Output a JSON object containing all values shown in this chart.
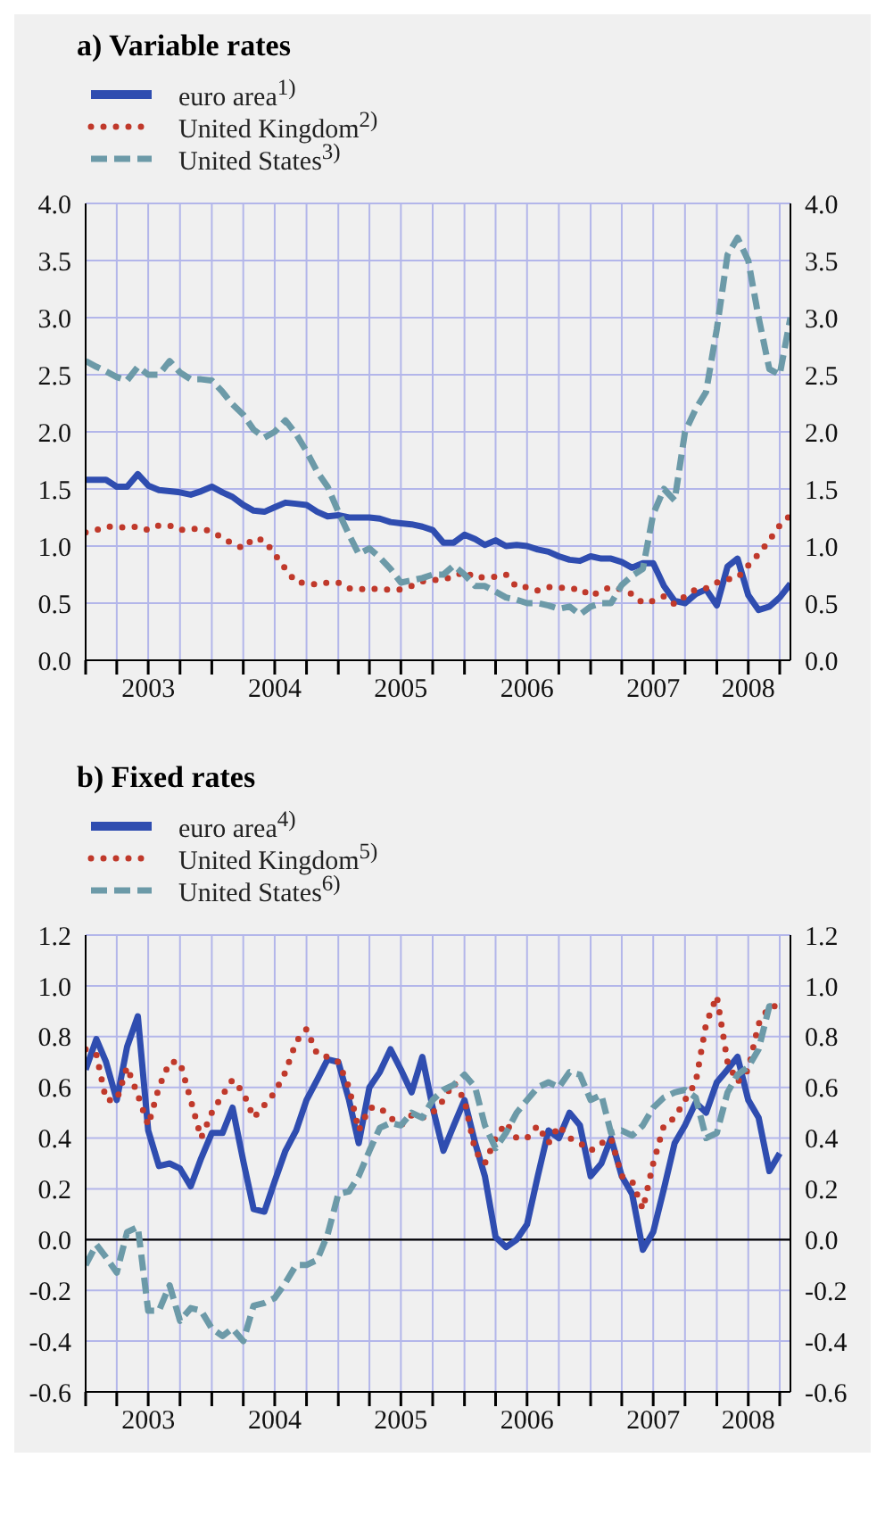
{
  "chart_data": [
    {
      "type": "line",
      "title": "a) Variable rates",
      "legend": "top left",
      "grid": true,
      "x": [
        "2003-01",
        "2003-02",
        "2003-03",
        "2003-04",
        "2003-05",
        "2003-06",
        "2003-07",
        "2003-08",
        "2003-09",
        "2003-10",
        "2003-11",
        "2003-12",
        "2004-01",
        "2004-02",
        "2004-03",
        "2004-04",
        "2004-05",
        "2004-06",
        "2004-07",
        "2004-08",
        "2004-09",
        "2004-10",
        "2004-11",
        "2004-12",
        "2005-01",
        "2005-02",
        "2005-03",
        "2005-04",
        "2005-05",
        "2005-06",
        "2005-07",
        "2005-08",
        "2005-09",
        "2005-10",
        "2005-11",
        "2005-12",
        "2006-01",
        "2006-02",
        "2006-03",
        "2006-04",
        "2006-05",
        "2006-06",
        "2006-07",
        "2006-08",
        "2006-09",
        "2006-10",
        "2006-11",
        "2006-12",
        "2007-01",
        "2007-02",
        "2007-03",
        "2007-04",
        "2007-05",
        "2007-06",
        "2007-07",
        "2007-08",
        "2007-09",
        "2007-10",
        "2007-11",
        "2007-12",
        "2008-01",
        "2008-02",
        "2008-03",
        "2008-04",
        "2008-05",
        "2008-06",
        "2008-07",
        "2008-08"
      ],
      "xlim": [
        "2003-01",
        "2008-08"
      ],
      "xticks": [
        {
          "value": "2003-01",
          "label": null
        },
        {
          "value": "2003-04",
          "label": null
        },
        {
          "value": "2003-07",
          "label": "2003"
        },
        {
          "value": "2003-10",
          "label": null
        },
        {
          "value": "2004-01",
          "label": null
        },
        {
          "value": "2004-04",
          "label": null
        },
        {
          "value": "2004-07",
          "label": "2004"
        },
        {
          "value": "2004-10",
          "label": null
        },
        {
          "value": "2005-01",
          "label": null
        },
        {
          "value": "2005-04",
          "label": null
        },
        {
          "value": "2005-07",
          "label": "2005"
        },
        {
          "value": "2005-10",
          "label": null
        },
        {
          "value": "2006-01",
          "label": null
        },
        {
          "value": "2006-04",
          "label": null
        },
        {
          "value": "2006-07",
          "label": "2006"
        },
        {
          "value": "2006-10",
          "label": null
        },
        {
          "value": "2007-01",
          "label": null
        },
        {
          "value": "2007-04",
          "label": null
        },
        {
          "value": "2007-07",
          "label": "2007"
        },
        {
          "value": "2007-10",
          "label": null
        },
        {
          "value": "2008-01",
          "label": null
        },
        {
          "value": "2008-04",
          "label": "2008"
        },
        {
          "value": "2008-07",
          "label": null
        }
      ],
      "ylim": [
        0,
        4
      ],
      "yticks": [
        {
          "value": 0,
          "label": "0.0"
        },
        {
          "value": 0.5,
          "label": "0.5"
        },
        {
          "value": 1,
          "label": "1.0"
        },
        {
          "value": 1.5,
          "label": "1.5"
        },
        {
          "value": 2,
          "label": "2.0"
        },
        {
          "value": 2.5,
          "label": "2.5"
        },
        {
          "value": 3,
          "label": "3.0"
        },
        {
          "value": 3.5,
          "label": "3.5"
        },
        {
          "value": 4,
          "label": "4.0"
        }
      ],
      "y2lim": [
        0,
        4
      ],
      "y2ticks": [
        {
          "value": 0,
          "label": "0.0"
        },
        {
          "value": 0.5,
          "label": "0.5"
        },
        {
          "value": 1,
          "label": "1.0"
        },
        {
          "value": 1.5,
          "label": "1.5"
        },
        {
          "value": 2,
          "label": "2.0"
        },
        {
          "value": 2.5,
          "label": "2.5"
        },
        {
          "value": 3,
          "label": "3.0"
        },
        {
          "value": 3.5,
          "label": "3.5"
        },
        {
          "value": 4,
          "label": "4.0"
        }
      ],
      "series": [
        {
          "name": "euro area$^{1)}$",
          "color": "#2f4db0",
          "line_style": "solid",
          "values": [
            1.58,
            1.58,
            1.58,
            1.52,
            1.52,
            1.63,
            1.53,
            1.49,
            1.48,
            1.47,
            1.45,
            1.48,
            1.52,
            1.47,
            1.43,
            1.36,
            1.31,
            1.3,
            1.34,
            1.38,
            1.37,
            1.36,
            1.3,
            1.26,
            1.27,
            1.25,
            1.25,
            1.25,
            1.24,
            1.21,
            1.2,
            1.19,
            1.17,
            1.14,
            1.03,
            1.03,
            1.1,
            1.06,
            1.01,
            1.05,
            1.0,
            1.01,
            1.0,
            0.97,
            0.95,
            0.91,
            0.88,
            0.87,
            0.91,
            0.89,
            0.89,
            0.86,
            0.81,
            0.85,
            0.85,
            0.65,
            0.52,
            0.5,
            0.58,
            0.62,
            0.48,
            0.82,
            0.89,
            0.57,
            0.44,
            0.47,
            0.55,
            0.67
          ]
        },
        {
          "name": "United Kingdom$^{2)}$",
          "color": "#c0392b",
          "line_style": "dotted",
          "values": [
            1.12,
            1.14,
            1.17,
            1.17,
            1.16,
            1.17,
            1.14,
            1.18,
            1.18,
            1.14,
            1.15,
            1.15,
            1.13,
            1.07,
            1.02,
            0.98,
            1.07,
            1.05,
            0.93,
            0.8,
            0.68,
            0.68,
            0.66,
            0.68,
            0.68,
            0.63,
            0.62,
            0.63,
            0.62,
            0.62,
            0.62,
            0.65,
            0.69,
            0.7,
            0.71,
            0.73,
            0.78,
            0.72,
            0.73,
            0.73,
            0.75,
            0.64,
            0.64,
            0.61,
            0.64,
            0.64,
            0.62,
            0.63,
            0.56,
            0.61,
            0.64,
            0.62,
            0.58,
            0.5,
            0.52,
            0.56,
            0.49,
            0.56,
            0.62,
            0.63,
            0.68,
            0.71,
            0.72,
            0.83,
            0.93,
            1.05,
            1.18,
            1.27
          ]
        },
        {
          "name": "United States$^{3)}$",
          "color": "#6c9aa8",
          "line_style": "dashed",
          "values": [
            2.62,
            2.57,
            2.53,
            2.48,
            2.45,
            2.57,
            2.5,
            2.5,
            2.62,
            2.52,
            2.46,
            2.46,
            2.45,
            2.35,
            2.24,
            2.15,
            2.02,
            1.95,
            2.0,
            2.1,
            1.98,
            1.83,
            1.65,
            1.52,
            1.3,
            1.1,
            0.93,
            0.98,
            0.9,
            0.8,
            0.68,
            0.7,
            0.72,
            0.75,
            0.75,
            0.83,
            0.75,
            0.65,
            0.65,
            0.6,
            0.55,
            0.53,
            0.5,
            0.5,
            0.48,
            0.45,
            0.47,
            0.4,
            0.47,
            0.5,
            0.5,
            0.66,
            0.74,
            0.8,
            1.28,
            1.5,
            1.4,
            2.0,
            2.2,
            2.35,
            2.9,
            3.55,
            3.7,
            3.5,
            3.0,
            2.55,
            2.5,
            3.0
          ]
        }
      ]
    },
    {
      "type": "line",
      "title": "b) Fixed rates",
      "legend": "top left",
      "grid": true,
      "x": [
        "2003-01",
        "2003-02",
        "2003-03",
        "2003-04",
        "2003-05",
        "2003-06",
        "2003-07",
        "2003-08",
        "2003-09",
        "2003-10",
        "2003-11",
        "2003-12",
        "2004-01",
        "2004-02",
        "2004-03",
        "2004-04",
        "2004-05",
        "2004-06",
        "2004-07",
        "2004-08",
        "2004-09",
        "2004-10",
        "2004-11",
        "2004-12",
        "2005-01",
        "2005-02",
        "2005-03",
        "2005-04",
        "2005-05",
        "2005-06",
        "2005-07",
        "2005-08",
        "2005-09",
        "2005-10",
        "2005-11",
        "2005-12",
        "2006-01",
        "2006-02",
        "2006-03",
        "2006-04",
        "2006-05",
        "2006-06",
        "2006-07",
        "2006-08",
        "2006-09",
        "2006-10",
        "2006-11",
        "2006-12",
        "2007-01",
        "2007-02",
        "2007-03",
        "2007-04",
        "2007-05",
        "2007-06",
        "2007-07",
        "2007-08",
        "2007-09",
        "2007-10",
        "2007-11",
        "2007-12",
        "2008-01",
        "2008-02",
        "2008-03",
        "2008-04",
        "2008-05",
        "2008-06",
        "2008-07"
      ],
      "xlim": [
        "2003-01",
        "2008-08"
      ],
      "xticks": [
        {
          "value": "2003-01",
          "label": null
        },
        {
          "value": "2003-04",
          "label": null
        },
        {
          "value": "2003-07",
          "label": "2003"
        },
        {
          "value": "2003-10",
          "label": null
        },
        {
          "value": "2004-01",
          "label": null
        },
        {
          "value": "2004-04",
          "label": null
        },
        {
          "value": "2004-07",
          "label": "2004"
        },
        {
          "value": "2004-10",
          "label": null
        },
        {
          "value": "2005-01",
          "label": null
        },
        {
          "value": "2005-04",
          "label": null
        },
        {
          "value": "2005-07",
          "label": "2005"
        },
        {
          "value": "2005-10",
          "label": null
        },
        {
          "value": "2006-01",
          "label": null
        },
        {
          "value": "2006-04",
          "label": null
        },
        {
          "value": "2006-07",
          "label": "2006"
        },
        {
          "value": "2006-10",
          "label": null
        },
        {
          "value": "2007-01",
          "label": null
        },
        {
          "value": "2007-04",
          "label": null
        },
        {
          "value": "2007-07",
          "label": "2007"
        },
        {
          "value": "2007-10",
          "label": null
        },
        {
          "value": "2008-01",
          "label": null
        },
        {
          "value": "2008-04",
          "label": "2008"
        },
        {
          "value": "2008-07",
          "label": null
        }
      ],
      "ylim": [
        -0.6,
        1.2
      ],
      "yticks": [
        {
          "value": -0.6,
          "label": "-0.6"
        },
        {
          "value": -0.4,
          "label": "-0.4"
        },
        {
          "value": -0.2,
          "label": "-0.2"
        },
        {
          "value": 0,
          "label": "0.0"
        },
        {
          "value": 0.2,
          "label": "0.2"
        },
        {
          "value": 0.4,
          "label": "0.4"
        },
        {
          "value": 0.6,
          "label": "0.6"
        },
        {
          "value": 0.8,
          "label": "0.8"
        },
        {
          "value": 1,
          "label": "1.0"
        },
        {
          "value": 1.2,
          "label": "1.2"
        }
      ],
      "y2lim": [
        -0.6,
        1.2
      ],
      "y2ticks": [
        {
          "value": -0.6,
          "label": "-0.6"
        },
        {
          "value": -0.4,
          "label": "-0.4"
        },
        {
          "value": -0.2,
          "label": "-0.2"
        },
        {
          "value": 0,
          "label": "0.0"
        },
        {
          "value": 0.2,
          "label": "0.2"
        },
        {
          "value": 0.4,
          "label": "0.4"
        },
        {
          "value": 0.6,
          "label": "0.6"
        },
        {
          "value": 0.8,
          "label": "0.8"
        },
        {
          "value": 1,
          "label": "1.0"
        },
        {
          "value": 1.2,
          "label": "1.2"
        }
      ],
      "ref_lines": [
        {
          "axis": "y",
          "value": 0,
          "color": "#000000"
        }
      ],
      "series": [
        {
          "name": "euro area$^{4)}$",
          "color": "#2f4db0",
          "line_style": "solid",
          "values": [
            0.67,
            0.79,
            0.7,
            0.55,
            0.76,
            0.88,
            0.43,
            0.29,
            0.3,
            0.28,
            0.21,
            0.32,
            0.42,
            0.42,
            0.52,
            0.31,
            0.12,
            0.11,
            0.23,
            0.35,
            0.43,
            0.55,
            0.63,
            0.71,
            0.7,
            0.55,
            0.38,
            0.6,
            0.66,
            0.75,
            0.67,
            0.58,
            0.72,
            0.52,
            0.35,
            0.45,
            0.55,
            0.38,
            0.25,
            0.01,
            -0.03,
            0.0,
            0.06,
            0.25,
            0.43,
            0.4,
            0.5,
            0.45,
            0.25,
            0.3,
            0.4,
            0.25,
            0.18,
            -0.04,
            0.03,
            0.2,
            0.38,
            0.45,
            0.54,
            0.5,
            0.62,
            0.67,
            0.72,
            0.55,
            0.48,
            0.27,
            0.34
          ]
        },
        {
          "name": "United Kingdom$^{5)}$",
          "color": "#c0392b",
          "line_style": "dotted",
          "values": [
            0.75,
            0.73,
            0.55,
            0.55,
            0.68,
            0.57,
            0.45,
            0.6,
            0.7,
            0.7,
            0.55,
            0.4,
            0.5,
            0.57,
            0.63,
            0.58,
            0.48,
            0.53,
            0.58,
            0.66,
            0.78,
            0.83,
            0.73,
            0.72,
            0.7,
            0.6,
            0.43,
            0.52,
            0.52,
            0.48,
            0.45,
            0.49,
            0.48,
            0.5,
            0.55,
            0.62,
            0.55,
            0.35,
            0.3,
            0.4,
            0.46,
            0.4,
            0.4,
            0.45,
            0.38,
            0.45,
            0.4,
            0.38,
            0.35,
            0.38,
            0.4,
            0.25,
            0.23,
            0.12,
            0.3,
            0.45,
            0.48,
            0.55,
            0.62,
            0.85,
            0.96,
            0.7,
            0.62,
            0.67,
            0.85,
            0.92,
            0.92
          ]
        },
        {
          "name": "United States$^{6)}$",
          "color": "#6c9aa8",
          "line_style": "dashed",
          "values": [
            -0.1,
            -0.02,
            -0.07,
            -0.13,
            0.03,
            0.05,
            -0.28,
            -0.28,
            -0.18,
            -0.32,
            -0.27,
            -0.28,
            -0.35,
            -0.38,
            -0.35,
            -0.4,
            -0.26,
            -0.25,
            -0.23,
            -0.17,
            -0.1,
            -0.1,
            -0.08,
            0.02,
            0.18,
            0.19,
            0.25,
            0.35,
            0.44,
            0.46,
            0.45,
            0.5,
            0.48,
            0.55,
            0.59,
            0.61,
            0.65,
            0.6,
            0.45,
            0.36,
            0.42,
            0.5,
            0.55,
            0.6,
            0.62,
            0.6,
            0.66,
            0.65,
            0.55,
            0.57,
            0.42,
            0.43,
            0.41,
            0.45,
            0.52,
            0.56,
            0.58,
            0.59,
            0.56,
            0.4,
            0.42,
            0.58,
            0.65,
            0.68,
            0.75,
            0.92,
            0.92
          ]
        }
      ]
    }
  ]
}
